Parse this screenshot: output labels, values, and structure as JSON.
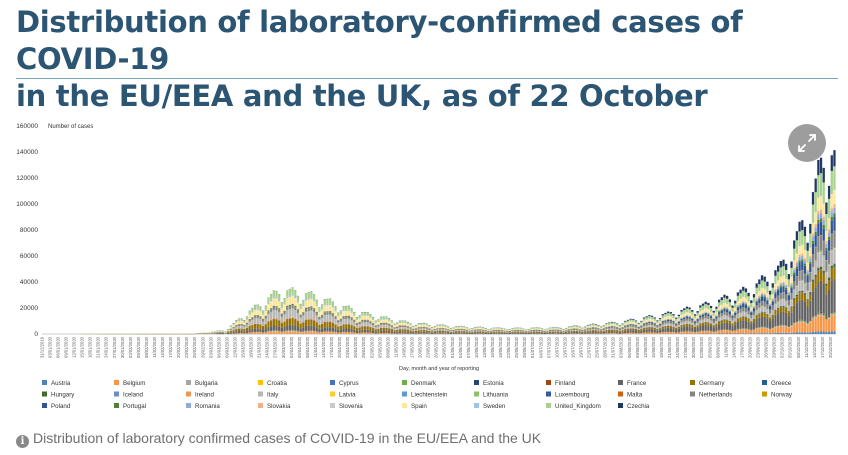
{
  "page": {
    "title_line1": "Distribution of laboratory-confirmed cases of COVID-19",
    "title_line2": "in the EU/EEA and the UK, as of 22 October",
    "caption": "Distribution of laboratory confirmed cases of COVID-19 in the EU/EEA and the UK",
    "expand_icon": "expand-arrows-icon",
    "info_icon": "info-circle-icon"
  },
  "chart_data": {
    "type": "bar",
    "stacked": true,
    "title": "",
    "ylabel": "Number of cases",
    "xlabel": "Day, month and year of reporting",
    "ylim": [
      0,
      160000
    ],
    "yticks": [
      0,
      20000,
      40000,
      60000,
      80000,
      100000,
      120000,
      140000,
      160000
    ],
    "x_start": "2019-12-31",
    "x_end": "2020-10-21",
    "x_tick_every_days": 3,
    "weekly_pattern_note": "daily bars; weekend dips",
    "total_anchor_points": [
      {
        "date": "2020-02-25",
        "total": 300
      },
      {
        "date": "2020-03-08",
        "total": 3000
      },
      {
        "date": "2020-03-15",
        "total": 15000
      },
      {
        "date": "2020-03-22",
        "total": 25000
      },
      {
        "date": "2020-03-28",
        "total": 34000
      },
      {
        "date": "2020-04-03",
        "total": 33000
      },
      {
        "date": "2020-04-10",
        "total": 30000
      },
      {
        "date": "2020-04-20",
        "total": 22000
      },
      {
        "date": "2020-05-01",
        "total": 15000
      },
      {
        "date": "2020-05-15",
        "total": 9000
      },
      {
        "date": "2020-06-01",
        "total": 6000
      },
      {
        "date": "2020-06-20",
        "total": 4500
      },
      {
        "date": "2020-07-10",
        "total": 5000
      },
      {
        "date": "2020-08-01",
        "total": 9000
      },
      {
        "date": "2020-08-20",
        "total": 16000
      },
      {
        "date": "2020-09-05",
        "total": 24000
      },
      {
        "date": "2020-09-20",
        "total": 36000
      },
      {
        "date": "2020-10-01",
        "total": 52000
      },
      {
        "date": "2020-10-08",
        "total": 80000
      },
      {
        "date": "2020-10-14",
        "total": 115000
      },
      {
        "date": "2020-10-17",
        "total": 142000
      },
      {
        "date": "2020-10-21",
        "total": 136000
      }
    ],
    "series": [
      {
        "name": "Austria",
        "color": "#4f81bd"
      },
      {
        "name": "Belgium",
        "color": "#f79646"
      },
      {
        "name": "Bulgaria",
        "color": "#a5a5a5"
      },
      {
        "name": "Croatia",
        "color": "#ffc000"
      },
      {
        "name": "Cyprus",
        "color": "#4472c4"
      },
      {
        "name": "Denmark",
        "color": "#70ad47"
      },
      {
        "name": "Estonia",
        "color": "#264478"
      },
      {
        "name": "Finland",
        "color": "#9e480e"
      },
      {
        "name": "France",
        "color": "#636363"
      },
      {
        "name": "Germany",
        "color": "#997300"
      },
      {
        "name": "Greece",
        "color": "#255e91"
      },
      {
        "name": "Hungary",
        "color": "#43682b"
      },
      {
        "name": "Iceland",
        "color": "#698ed0"
      },
      {
        "name": "Ireland",
        "color": "#f1975a"
      },
      {
        "name": "Italy",
        "color": "#b7b7b7"
      },
      {
        "name": "Latvia",
        "color": "#ffcd33"
      },
      {
        "name": "Liechtenstein",
        "color": "#5b9bd5"
      },
      {
        "name": "Lithuania",
        "color": "#8cc168"
      },
      {
        "name": "Luxembourg",
        "color": "#335aa1"
      },
      {
        "name": "Malta",
        "color": "#d26012"
      },
      {
        "name": "Netherlands",
        "color": "#848484"
      },
      {
        "name": "Norway",
        "color": "#cc9a00"
      },
      {
        "name": "Poland",
        "color": "#2f5597"
      },
      {
        "name": "Portugal",
        "color": "#548235"
      },
      {
        "name": "Romania",
        "color": "#8faadc"
      },
      {
        "name": "Slovakia",
        "color": "#f4b183"
      },
      {
        "name": "Slovenia",
        "color": "#c9c9c9"
      },
      {
        "name": "Spain",
        "color": "#ffe699"
      },
      {
        "name": "Sweden",
        "color": "#9dc3e6"
      },
      {
        "name": "United_Kingdom",
        "color": "#a9d18e"
      },
      {
        "name": "Czechia",
        "color": "#203864"
      }
    ]
  }
}
